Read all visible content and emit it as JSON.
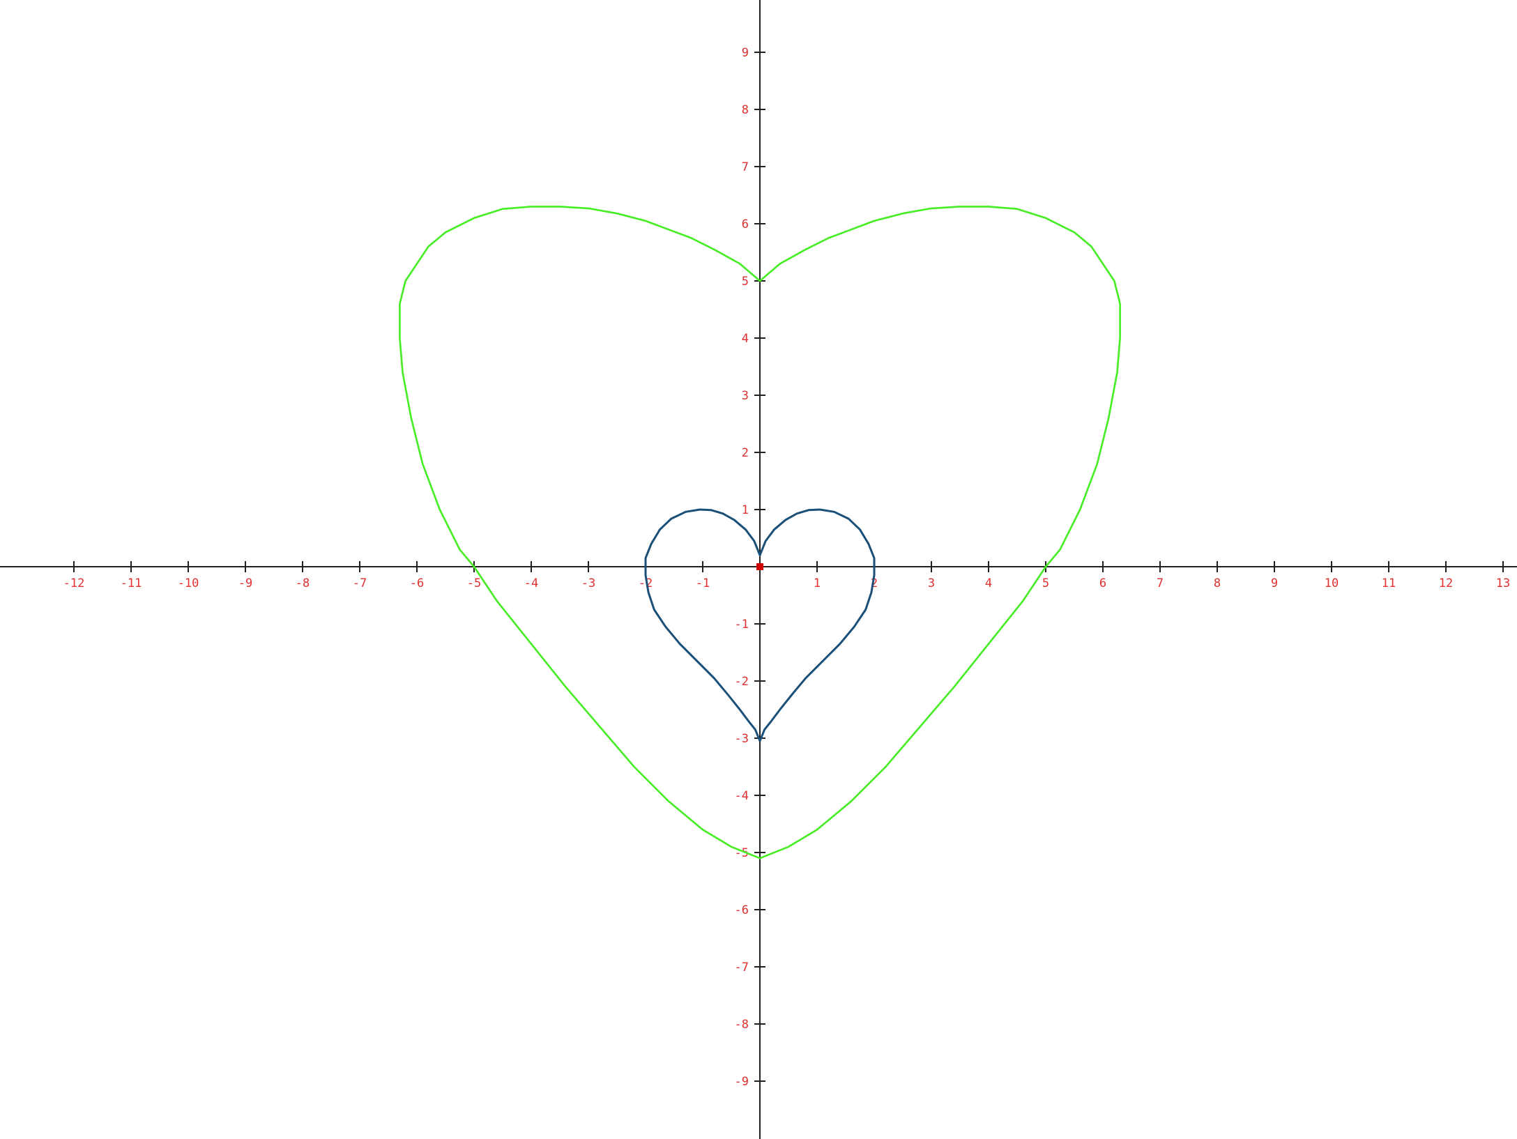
{
  "chart_data": {
    "type": "line",
    "title": "",
    "xlabel": "",
    "ylabel": "",
    "xlim": [
      -13.3,
      13.3
    ],
    "ylim": [
      -10,
      10
    ],
    "grid": false,
    "legend": "none",
    "x_ticks": [
      -12,
      -11,
      -10,
      -9,
      -8,
      -7,
      -6,
      -5,
      -4,
      -3,
      -2,
      -1,
      1,
      2,
      3,
      4,
      5,
      6,
      7,
      8,
      9,
      10,
      11,
      12,
      13
    ],
    "x_tick_labels": [
      "-12",
      "-11",
      "-10",
      "-9",
      "-8",
      "-7",
      "-6",
      "-5",
      "-4",
      "-3",
      "-2",
      "-1",
      "1",
      "2",
      "3",
      "4",
      "5",
      "6",
      "7",
      "8",
      "9",
      "10",
      "11",
      "12",
      "13"
    ],
    "y_ticks": [
      9,
      8,
      7,
      6,
      5,
      4,
      3,
      2,
      1,
      -1,
      -2,
      -3,
      -4,
      -5,
      -6,
      -7,
      -8,
      -9
    ],
    "y_tick_labels": [
      "9",
      "8",
      "7",
      "6",
      "5",
      "4",
      "3",
      "2",
      "1",
      "-1",
      "-2",
      "-3",
      "-4",
      "-5",
      "-6",
      "-7",
      "-8",
      "-9"
    ],
    "origin_marker_color": "#d00000",
    "axis_color": "#202020",
    "tick_label_color": "#e03030",
    "series": [
      {
        "color": "#44ee22",
        "x": [
          0,
          0.35,
          0.8,
          1.2,
          1.6,
          2.0,
          2.5,
          3.0,
          3.5,
          4.0,
          4.5,
          5.0,
          5.5,
          5.8,
          6.0,
          6.2,
          6.3,
          6.3,
          6.25,
          6.1,
          5.9,
          5.6,
          5.25,
          5.0,
          4.6,
          4.0,
          3.4,
          2.8,
          2.2,
          1.6,
          1.0,
          0.5,
          0,
          -0.5,
          -1.0,
          -1.6,
          -2.2,
          -2.8,
          -3.4,
          -4.0,
          -4.6,
          -5.0,
          -5.25,
          -5.6,
          -5.9,
          -6.1,
          -6.25,
          -6.3,
          -6.3,
          -6.2,
          -6.0,
          -5.8,
          -5.5,
          -5.0,
          -4.5,
          -4.0,
          -3.5,
          -3.0,
          -2.5,
          -2.0,
          -1.6,
          -1.2,
          -0.8,
          -0.35,
          0
        ],
        "y": [
          5.0,
          5.3,
          5.55,
          5.75,
          5.9,
          6.05,
          6.18,
          6.27,
          6.3,
          6.3,
          6.26,
          6.1,
          5.85,
          5.6,
          5.3,
          5.0,
          4.6,
          4.0,
          3.4,
          2.6,
          1.8,
          1.0,
          0.3,
          0.0,
          -0.6,
          -1.35,
          -2.1,
          -2.8,
          -3.5,
          -4.1,
          -4.6,
          -4.9,
          -5.1,
          -4.9,
          -4.6,
          -4.1,
          -3.5,
          -2.8,
          -2.1,
          -1.35,
          -0.6,
          0.0,
          0.3,
          1.0,
          1.8,
          2.6,
          3.4,
          4.0,
          4.6,
          5.0,
          5.3,
          5.6,
          5.85,
          6.1,
          6.26,
          6.3,
          6.3,
          6.27,
          6.18,
          6.05,
          5.9,
          5.75,
          5.55,
          5.3,
          5.0
        ]
      },
      {
        "color": "#1a4f78",
        "x": [
          0,
          0.1,
          0.25,
          0.45,
          0.65,
          0.85,
          1.05,
          1.3,
          1.55,
          1.75,
          1.9,
          2.0,
          2.0,
          1.95,
          1.85,
          1.65,
          1.4,
          1.1,
          0.8,
          0.55,
          0.35,
          0.2,
          0.08,
          0,
          -0.08,
          -0.2,
          -0.35,
          -0.55,
          -0.8,
          -1.1,
          -1.4,
          -1.65,
          -1.85,
          -1.95,
          -2.0,
          -2.0,
          -1.9,
          -1.75,
          -1.55,
          -1.3,
          -1.05,
          -0.85,
          -0.65,
          -0.45,
          -0.25,
          -0.1,
          0
        ],
        "y": [
          0.2,
          0.45,
          0.65,
          0.82,
          0.93,
          0.99,
          1.0,
          0.96,
          0.84,
          0.65,
          0.4,
          0.15,
          -0.15,
          -0.45,
          -0.75,
          -1.05,
          -1.35,
          -1.65,
          -1.95,
          -2.25,
          -2.5,
          -2.7,
          -2.85,
          -3.05,
          -2.85,
          -2.7,
          -2.5,
          -2.25,
          -1.95,
          -1.65,
          -1.35,
          -1.05,
          -0.75,
          -0.45,
          -0.15,
          0.15,
          0.4,
          0.65,
          0.84,
          0.96,
          1.0,
          0.99,
          0.93,
          0.82,
          0.65,
          0.45,
          0.2
        ]
      }
    ]
  }
}
